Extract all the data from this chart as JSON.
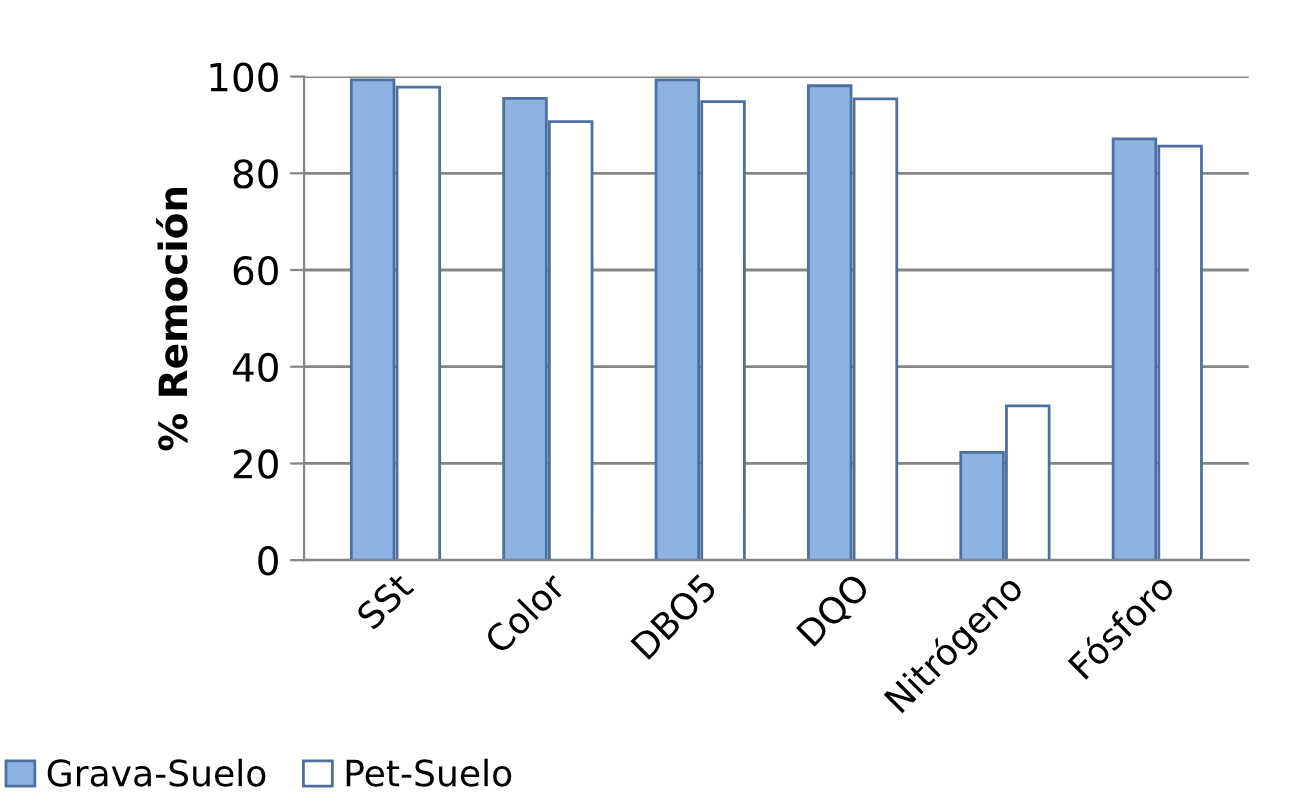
{
  "chart_data": {
    "type": "bar",
    "ylabel": "% Remoción",
    "categories": [
      "SSt",
      "Color",
      "DBO5",
      "DQO",
      "Nitrógeno",
      "Fósforo"
    ],
    "series": [
      {
        "name": "Grava-Suelo",
        "color": "#8db3e2",
        "values": [
          99.3,
          95.5,
          99.3,
          98.1,
          22.3,
          87.1
        ]
      },
      {
        "name": "Pet-Suelo",
        "color": "#ffffff",
        "values": [
          97.8,
          90.7,
          94.8,
          95.4,
          31.9,
          85.6
        ]
      }
    ],
    "ylim": [
      0,
      100
    ],
    "yticks": [
      0,
      20,
      40,
      60,
      80,
      100
    ],
    "grid": "y",
    "legend": "bottom"
  }
}
